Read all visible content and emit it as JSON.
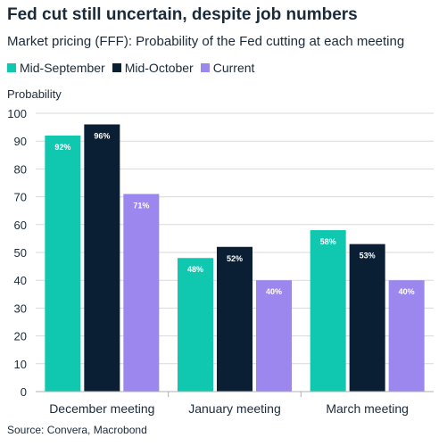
{
  "chart_data": {
    "type": "bar",
    "title": "Fed cut still uncertain, despite job numbers",
    "subtitle": "Market pricing (FFF): Probability of the Fed cutting at each meeting",
    "ylabel": "Probability",
    "xlabel": "",
    "ylim": [
      0,
      100
    ],
    "yticks": [
      0,
      10,
      20,
      30,
      40,
      50,
      60,
      70,
      80,
      90,
      100
    ],
    "grid": true,
    "legend_placement": "top-left",
    "categories": [
      "December meeting",
      "January meeting",
      "March meeting"
    ],
    "series": [
      {
        "name": "Mid-September",
        "color": "#10c8b0",
        "values": [
          92,
          48,
          58
        ],
        "labels": [
          "92%",
          "48%",
          "58%"
        ]
      },
      {
        "name": "Mid-October",
        "color": "#0a1f33",
        "values": [
          96,
          52,
          53
        ],
        "labels": [
          "96%",
          "52%",
          "53%"
        ]
      },
      {
        "name": "Current",
        "color": "#9b87ee",
        "values": [
          71,
          40,
          40
        ],
        "labels": [
          "71%",
          "40%",
          "40%"
        ]
      }
    ]
  },
  "source": "Source: Convera, Macrobond"
}
